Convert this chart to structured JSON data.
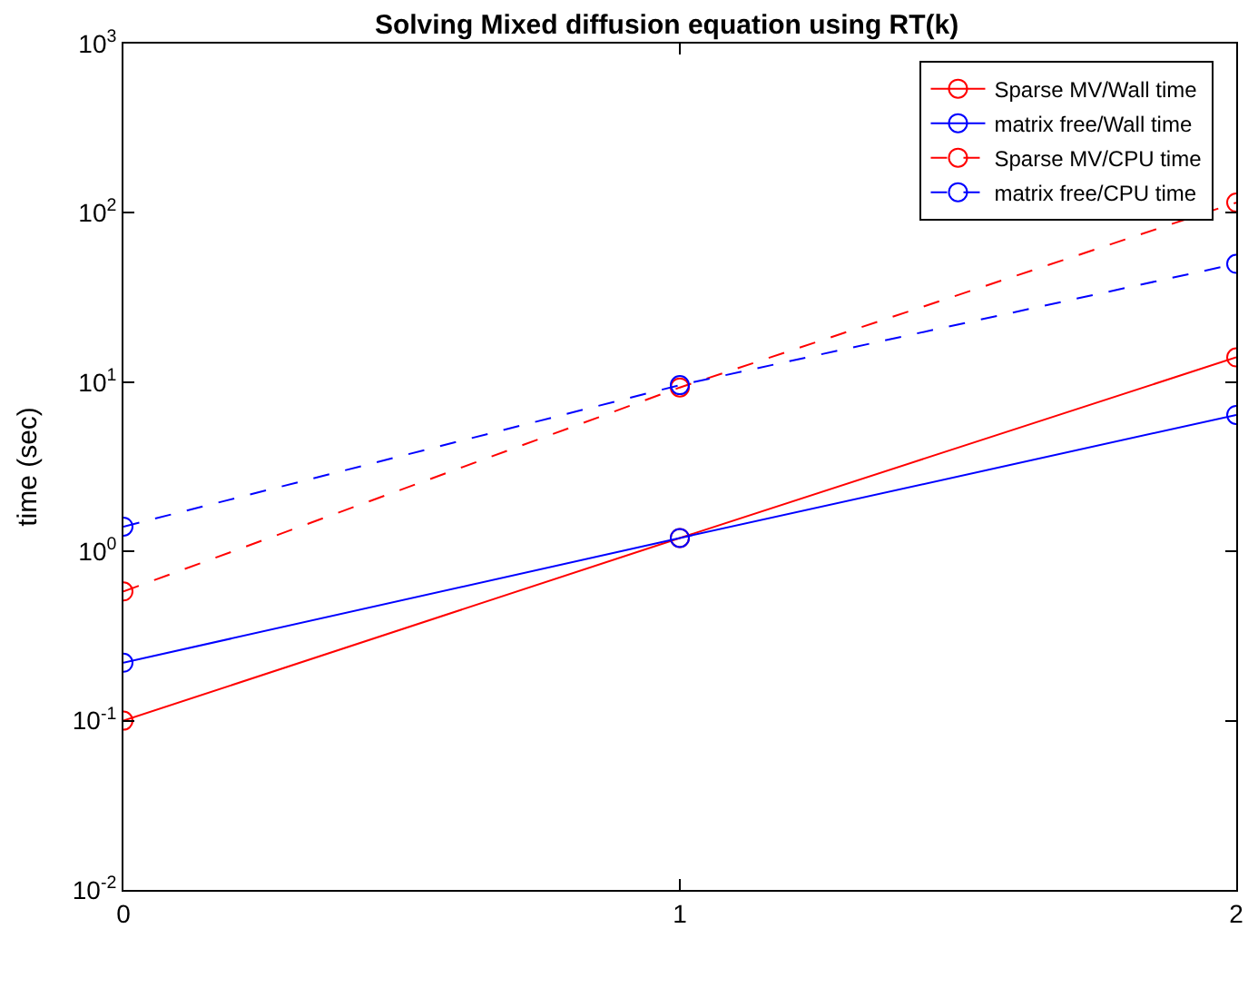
{
  "chart_data": {
    "type": "line",
    "title": "Solving Mixed diffusion equation using RT(k)",
    "ylabel": "time (sec)",
    "x": [
      0,
      1,
      2
    ],
    "xlim": [
      0,
      2
    ],
    "xticks": [
      0,
      1,
      2
    ],
    "ylim": [
      0.01,
      1000
    ],
    "log": "y",
    "yticks": [
      {
        "value": 0.01,
        "label": "10$^{-2}$"
      },
      {
        "value": 0.1,
        "label": "10$^{-1}$"
      },
      {
        "value": 1,
        "label": "10$^{0}$"
      },
      {
        "value": 10,
        "label": "10$^{1}$"
      },
      {
        "value": 100,
        "label": "10$^{2}$"
      },
      {
        "value": 1000,
        "label": "10$^{3}$"
      }
    ],
    "legend": "top right",
    "marker": "circle",
    "series": [
      {
        "name": "Sparse MV/Wall time",
        "color": "#ff0000",
        "line_style": "solid",
        "values": [
          0.1,
          1.2,
          14
        ]
      },
      {
        "name": "matrix free/Wall time",
        "color": "#0000ff",
        "line_style": "solid",
        "values": [
          0.22,
          1.2,
          6.4
        ]
      },
      {
        "name": "Sparse MV/CPU time",
        "color": "#ff0000",
        "line_style": "dashed",
        "values": [
          0.58,
          9.3,
          115
        ]
      },
      {
        "name": "matrix free/CPU time",
        "color": "#0000ff",
        "line_style": "dashed",
        "values": [
          1.4,
          9.6,
          50
        ]
      }
    ]
  }
}
